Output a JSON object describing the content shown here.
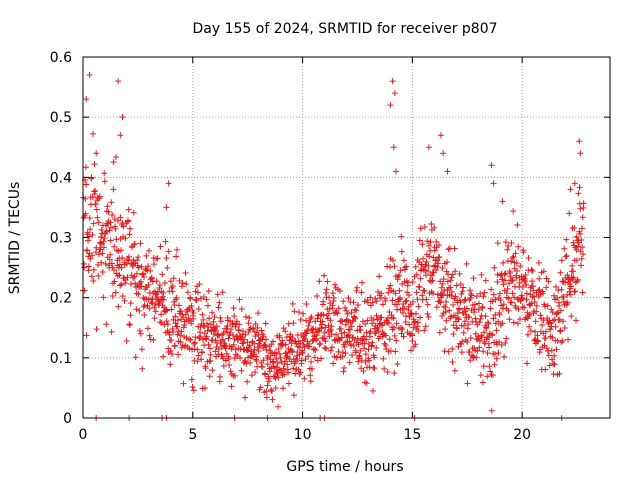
{
  "chart_data": {
    "type": "scatter",
    "title": "Day 155 of 2024, SRMTID for receiver p807",
    "xlabel": "GPS time / hours",
    "ylabel": "SRMTID / TECUs",
    "xlim": [
      0,
      24
    ],
    "ylim": [
      0,
      0.6
    ],
    "x_ticks": [
      0,
      5,
      10,
      15,
      20
    ],
    "x_tick_labels": [
      "0",
      "5",
      "10",
      "15",
      "20"
    ],
    "y_ticks": [
      0,
      0.1,
      0.2,
      0.3,
      0.4,
      0.5,
      0.6
    ],
    "y_tick_labels": [
      "0",
      "0.1",
      "0.2",
      "0.3",
      "0.4",
      "0.5",
      "0.6"
    ],
    "grid": true,
    "marker": "+",
    "series": [
      {
        "name": "SRMTID",
        "color": "#e41a1c",
        "trend": {
          "x": [
            0,
            0.5,
            1,
            1.5,
            2,
            2.5,
            3,
            3.5,
            4,
            5,
            6,
            7,
            8,
            8.5,
            9,
            10,
            10.5,
            11,
            12,
            13,
            14,
            14.5,
            15,
            15.5,
            16,
            16.5,
            17,
            18,
            18.5,
            19,
            19.5,
            20,
            21,
            21.5,
            22,
            22.5,
            22.8
          ],
          "y": [
            0.3,
            0.33,
            0.3,
            0.28,
            0.25,
            0.22,
            0.2,
            0.2,
            0.17,
            0.15,
            0.14,
            0.13,
            0.11,
            0.08,
            0.1,
            0.12,
            0.13,
            0.17,
            0.15,
            0.13,
            0.17,
            0.19,
            0.17,
            0.23,
            0.25,
            0.2,
            0.17,
            0.15,
            0.12,
            0.18,
            0.25,
            0.22,
            0.15,
            0.14,
            0.2,
            0.28,
            0.3
          ]
        },
        "spread": {
          "x": [
            0,
            1,
            2,
            3,
            4,
            6,
            8,
            10,
            12,
            14,
            16,
            18,
            20,
            22,
            23
          ],
          "y": [
            0.1,
            0.08,
            0.07,
            0.06,
            0.06,
            0.05,
            0.04,
            0.04,
            0.05,
            0.06,
            0.06,
            0.06,
            0.06,
            0.06,
            0.05
          ]
        },
        "spikes": [
          {
            "x": 0.3,
            "y": 0.57
          },
          {
            "x": 0.15,
            "y": 0.53
          },
          {
            "x": 0.6,
            "y": 0.44
          },
          {
            "x": 1.6,
            "y": 0.56
          },
          {
            "x": 1.8,
            "y": 0.5
          },
          {
            "x": 1.7,
            "y": 0.47
          },
          {
            "x": 3.9,
            "y": 0.39
          },
          {
            "x": 3.8,
            "y": 0.35
          },
          {
            "x": 14.1,
            "y": 0.56
          },
          {
            "x": 14.2,
            "y": 0.54
          },
          {
            "x": 14.0,
            "y": 0.52
          },
          {
            "x": 14.15,
            "y": 0.45
          },
          {
            "x": 14.25,
            "y": 0.41
          },
          {
            "x": 15.75,
            "y": 0.45
          },
          {
            "x": 16.3,
            "y": 0.47
          },
          {
            "x": 16.4,
            "y": 0.44
          },
          {
            "x": 16.6,
            "y": 0.41
          },
          {
            "x": 18.6,
            "y": 0.42
          },
          {
            "x": 18.7,
            "y": 0.39
          },
          {
            "x": 19.1,
            "y": 0.36
          },
          {
            "x": 22.6,
            "y": 0.46
          },
          {
            "x": 22.65,
            "y": 0.44
          },
          {
            "x": 22.4,
            "y": 0.39
          },
          {
            "x": 22.2,
            "y": 0.38
          }
        ],
        "zeros_x": [
          0.6,
          2.1,
          3.6,
          3.8,
          6.9,
          8.4,
          10.8,
          11.0,
          15.1,
          21.8
        ]
      }
    ]
  }
}
